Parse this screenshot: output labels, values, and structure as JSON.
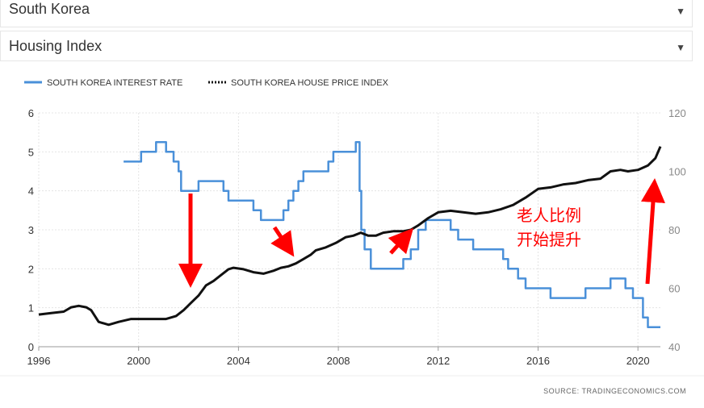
{
  "selectors": {
    "country": "South Korea",
    "indicator": "Housing Index"
  },
  "chart_data": {
    "type": "line",
    "legend": [
      "SOUTH KOREA INTEREST RATE",
      "SOUTH KOREA HOUSE PRICE INDEX"
    ],
    "legend_placement": "top-left",
    "x_ticks": [
      "1996",
      "2000",
      "2004",
      "2008",
      "2012",
      "2016",
      "2020"
    ],
    "xlim": [
      1996,
      2020.9
    ],
    "y_left": {
      "ticks": [
        "0",
        "1",
        "2",
        "3",
        "4",
        "5",
        "6"
      ],
      "lim": [
        0,
        6
      ]
    },
    "y_right": {
      "ticks": [
        "40",
        "60",
        "80",
        "100",
        "120"
      ],
      "lim": [
        40,
        120
      ]
    },
    "grid": true,
    "source": "SOURCE:  TRADINGECONOMICS.COM",
    "annotation_text": [
      "老人比例",
      "开始提升"
    ],
    "series": [
      {
        "name": "SOUTH KOREA INTEREST RATE",
        "axis": "left",
        "color": "#4a90d9",
        "style": "step",
        "x": [
          1999.4,
          2000.1,
          2000.7,
          2001.1,
          2001.4,
          2001.6,
          2001.7,
          2002.4,
          2003.4,
          2003.6,
          2004.6,
          2004.9,
          2005.8,
          2006.0,
          2006.2,
          2006.4,
          2006.6,
          2007.6,
          2007.8,
          2008.7,
          2008.85,
          2008.92,
          2009.05,
          2009.3,
          2010.6,
          2010.9,
          2011.2,
          2011.5,
          2012.5,
          2012.8,
          2013.4,
          2014.6,
          2014.8,
          2015.2,
          2015.5,
          2016.5,
          2017.9,
          2018.9,
          2019.5,
          2019.8,
          2020.2,
          2020.4,
          2020.9
        ],
        "y": [
          4.75,
          5.0,
          5.25,
          5.0,
          4.75,
          4.5,
          4.0,
          4.25,
          4.0,
          3.75,
          3.5,
          3.25,
          3.5,
          3.75,
          4.0,
          4.25,
          4.5,
          4.75,
          5.0,
          5.25,
          4.0,
          3.0,
          2.5,
          2.0,
          2.25,
          2.5,
          3.0,
          3.25,
          3.0,
          2.75,
          2.5,
          2.25,
          2.0,
          1.75,
          1.5,
          1.25,
          1.5,
          1.75,
          1.5,
          1.25,
          0.75,
          0.5,
          0.5
        ]
      },
      {
        "name": "SOUTH KOREA HOUSE PRICE INDEX",
        "axis": "right",
        "color": "#111111",
        "style": "line",
        "x": [
          1996.0,
          1996.5,
          1997.0,
          1997.3,
          1997.6,
          1997.9,
          1998.1,
          1998.4,
          1998.8,
          1999.2,
          1999.7,
          2000.2,
          2000.7,
          2001.1,
          2001.5,
          2001.8,
          2002.1,
          2002.4,
          2002.7,
          2003.0,
          2003.3,
          2003.6,
          2003.8,
          2004.2,
          2004.6,
          2005.0,
          2005.4,
          2005.7,
          2006.0,
          2006.3,
          2006.6,
          2006.9,
          2007.1,
          2007.5,
          2007.9,
          2008.3,
          2008.6,
          2008.9,
          2009.2,
          2009.5,
          2009.8,
          2010.2,
          2010.6,
          2010.9,
          2011.2,
          2011.6,
          2012.0,
          2012.5,
          2013.0,
          2013.5,
          2014.0,
          2014.5,
          2015.0,
          2015.5,
          2016.0,
          2016.5,
          2017.0,
          2017.5,
          2018.0,
          2018.5,
          2018.9,
          2019.3,
          2019.6,
          2020.0,
          2020.4,
          2020.7,
          2020.9
        ],
        "y": [
          51.0,
          51.5,
          52.0,
          53.5,
          54.0,
          53.5,
          52.5,
          48.5,
          47.5,
          48.5,
          49.5,
          49.5,
          49.5,
          49.5,
          50.5,
          52.5,
          55.0,
          57.5,
          61.0,
          62.5,
          64.5,
          66.5,
          67.0,
          66.5,
          65.5,
          65.0,
          66.0,
          67.0,
          67.5,
          68.5,
          70.0,
          71.5,
          73.0,
          74.0,
          75.5,
          77.5,
          78.0,
          79.0,
          78.0,
          78.0,
          79.0,
          79.5,
          79.5,
          80.0,
          81.5,
          84.0,
          86.0,
          86.5,
          86.0,
          85.5,
          86.0,
          87.0,
          88.5,
          91.0,
          94.0,
          94.5,
          95.5,
          96.0,
          97.0,
          97.5,
          100.0,
          100.5,
          100.0,
          100.5,
          102.0,
          104.5,
          108.5
        ]
      }
    ]
  }
}
